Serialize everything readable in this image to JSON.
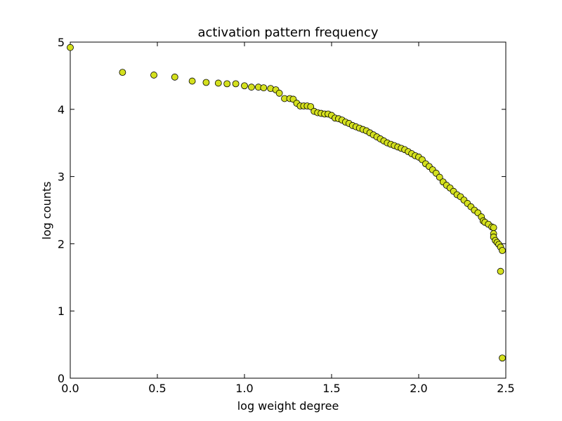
{
  "chart_data": {
    "type": "scatter",
    "title": "activation pattern frequency",
    "xlabel": "log weight degree",
    "ylabel": "log counts",
    "color": "#d4e01e",
    "edgecolor": "#000000",
    "x": [
      0,
      0.3,
      0.48,
      0.6,
      0.7,
      0.78,
      0.85,
      0.9,
      0.95,
      1,
      1.04,
      1.08,
      1.11,
      1.15,
      1.18,
      1.2,
      1.23,
      1.26,
      1.28,
      1.3,
      1.32,
      1.34,
      1.36,
      1.38,
      1.4,
      1.42,
      1.44,
      1.46,
      1.48,
      1.5,
      1.52,
      1.54,
      1.56,
      1.58,
      1.6,
      1.62,
      1.64,
      1.66,
      1.68,
      1.7,
      1.72,
      1.74,
      1.76,
      1.78,
      1.8,
      1.82,
      1.84,
      1.86,
      1.88,
      1.9,
      1.92,
      1.94,
      1.96,
      1.98,
      2,
      2.02,
      2.04,
      2.06,
      2.08,
      2.1,
      2.12,
      2.14,
      2.16,
      2.18,
      2.2,
      2.22,
      2.24,
      2.26,
      2.28,
      2.3,
      2.32,
      2.34,
      2.36,
      2.37,
      2.38,
      2.4,
      2.42,
      2.43,
      2.43,
      2.43,
      2.44,
      2.45,
      2.46,
      2.47,
      2.48,
      2.47,
      2.48
    ],
    "values": [
      4.92,
      4.55,
      4.51,
      4.48,
      4.42,
      4.4,
      4.39,
      4.38,
      4.38,
      4.35,
      4.33,
      4.33,
      4.32,
      4.31,
      4.29,
      4.24,
      4.16,
      4.16,
      4.15,
      4.09,
      4.05,
      4.05,
      4.05,
      4.04,
      3.97,
      3.95,
      3.94,
      3.93,
      3.93,
      3.91,
      3.87,
      3.86,
      3.84,
      3.81,
      3.79,
      3.76,
      3.74,
      3.72,
      3.7,
      3.68,
      3.65,
      3.62,
      3.59,
      3.56,
      3.53,
      3.5,
      3.48,
      3.46,
      3.44,
      3.42,
      3.4,
      3.37,
      3.34,
      3.31,
      3.29,
      3.25,
      3.19,
      3.15,
      3.1,
      3.05,
      2.99,
      2.92,
      2.87,
      2.83,
      2.78,
      2.73,
      2.7,
      2.65,
      2.6,
      2.55,
      2.5,
      2.46,
      2.4,
      2.34,
      2.32,
      2.29,
      2.25,
      2.24,
      2.15,
      2.1,
      2.05,
      2.02,
      1.99,
      1.95,
      1.9,
      1.59,
      0.3
    ],
    "xlim": [
      0,
      2.5
    ],
    "xticks": [
      {
        "value": 0,
        "label": "0.0"
      },
      {
        "value": 0.5,
        "label": "0.5"
      },
      {
        "value": 1,
        "label": "1.0"
      },
      {
        "value": 1.5,
        "label": "1.5"
      },
      {
        "value": 2,
        "label": "2.0"
      },
      {
        "value": 2.5,
        "label": "2.5"
      }
    ],
    "ylim": [
      0,
      5
    ],
    "yticks": [
      0,
      1,
      2,
      3,
      4,
      5
    ],
    "grid": false
  }
}
